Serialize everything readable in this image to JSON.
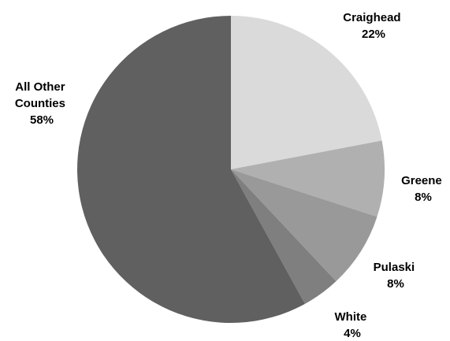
{
  "chart_data": {
    "type": "pie",
    "start_angle": "12 o'clock",
    "direction": "clockwise",
    "slices": [
      {
        "label_lines": [
          "Craighead"
        ],
        "pct_label": "22%",
        "value": 22,
        "color": "#dadada"
      },
      {
        "label_lines": [
          "Greene"
        ],
        "pct_label": "8%",
        "value": 8,
        "color": "#b0b0b0"
      },
      {
        "label_lines": [
          "Pulaski"
        ],
        "pct_label": "8%",
        "value": 8,
        "color": "#999999"
      },
      {
        "label_lines": [
          "White"
        ],
        "pct_label": "4%",
        "value": 4,
        "color": "#7f7f7f"
      },
      {
        "label_lines": [
          "All Other",
          "Counties"
        ],
        "pct_label": "58%",
        "value": 58,
        "color": "#606060"
      }
    ]
  }
}
